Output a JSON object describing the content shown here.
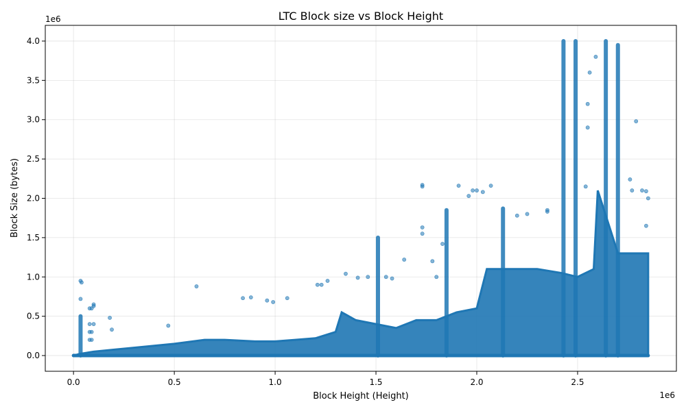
{
  "chart_data": {
    "type": "scatter",
    "title": "LTC Block size vs Block Height",
    "xlabel": "Block Height (Height)",
    "ylabel": "Block Size (bytes)",
    "x_offset_text": "1e6",
    "y_offset_text": "1e6",
    "xlim": [
      -0.14,
      2.99
    ],
    "ylim": [
      -0.2,
      4.2
    ],
    "x_units": "millions of blocks",
    "y_units": "millions of bytes",
    "grid": true,
    "x_ticks": [
      0.0,
      0.5,
      1.0,
      1.5,
      2.0,
      2.5
    ],
    "x_tick_labels": [
      "0.0",
      "0.5",
      "1.0",
      "1.5",
      "2.0",
      "2.5"
    ],
    "y_ticks": [
      0.0,
      0.5,
      1.0,
      1.5,
      2.0,
      2.5,
      3.0,
      3.5,
      4.0
    ],
    "y_tick_labels": [
      "0.0",
      "0.5",
      "1.0",
      "1.5",
      "2.0",
      "2.5",
      "3.0",
      "3.5",
      "4.0"
    ],
    "marker_color": "#1f77b4",
    "marker_alpha": 0.55,
    "density_envelope": {
      "x": [
        0.0,
        0.03,
        0.1,
        0.3,
        0.5,
        0.65,
        0.75,
        0.9,
        1.0,
        1.1,
        1.2,
        1.3,
        1.33,
        1.4,
        1.5,
        1.6,
        1.7,
        1.8,
        1.9,
        2.0,
        2.05,
        2.15,
        2.3,
        2.42,
        2.5,
        2.58,
        2.6,
        2.7,
        2.85
      ],
      "y": [
        0.0,
        0.02,
        0.05,
        0.1,
        0.15,
        0.2,
        0.2,
        0.18,
        0.18,
        0.2,
        0.22,
        0.3,
        0.55,
        0.45,
        0.4,
        0.35,
        0.45,
        0.45,
        0.55,
        0.6,
        1.1,
        1.1,
        1.1,
        1.05,
        1.0,
        1.1,
        2.1,
        1.3,
        1.3
      ]
    },
    "spikes": [
      {
        "x": 0.035,
        "y_max": 0.5
      },
      {
        "x": 1.51,
        "y_max": 1.5
      },
      {
        "x": 1.85,
        "y_max": 1.85
      },
      {
        "x": 2.13,
        "y_max": 1.87
      },
      {
        "x": 2.43,
        "y_max": 4.0
      },
      {
        "x": 2.49,
        "y_max": 4.0
      },
      {
        "x": 2.64,
        "y_max": 4.0
      },
      {
        "x": 2.7,
        "y_max": 3.95
      }
    ],
    "outliers": [
      {
        "x": 0.035,
        "y": 0.95
      },
      {
        "x": 0.04,
        "y": 0.93
      },
      {
        "x": 0.035,
        "y": 0.72
      },
      {
        "x": 0.1,
        "y": 0.65
      },
      {
        "x": 0.1,
        "y": 0.63
      },
      {
        "x": 0.08,
        "y": 0.6
      },
      {
        "x": 0.09,
        "y": 0.6
      },
      {
        "x": 0.08,
        "y": 0.4
      },
      {
        "x": 0.1,
        "y": 0.4
      },
      {
        "x": 0.08,
        "y": 0.3
      },
      {
        "x": 0.09,
        "y": 0.3
      },
      {
        "x": 0.08,
        "y": 0.2
      },
      {
        "x": 0.09,
        "y": 0.2
      },
      {
        "x": 0.18,
        "y": 0.48
      },
      {
        "x": 0.19,
        "y": 0.33
      },
      {
        "x": 0.47,
        "y": 0.38
      },
      {
        "x": 0.61,
        "y": 0.88
      },
      {
        "x": 0.84,
        "y": 0.73
      },
      {
        "x": 0.88,
        "y": 0.74
      },
      {
        "x": 0.96,
        "y": 0.7
      },
      {
        "x": 0.99,
        "y": 0.68
      },
      {
        "x": 1.06,
        "y": 0.73
      },
      {
        "x": 1.21,
        "y": 0.9
      },
      {
        "x": 1.23,
        "y": 0.9
      },
      {
        "x": 1.26,
        "y": 0.95
      },
      {
        "x": 1.35,
        "y": 1.04
      },
      {
        "x": 1.41,
        "y": 0.99
      },
      {
        "x": 1.46,
        "y": 1.0
      },
      {
        "x": 1.55,
        "y": 1.0
      },
      {
        "x": 1.58,
        "y": 0.98
      },
      {
        "x": 1.64,
        "y": 1.22
      },
      {
        "x": 1.73,
        "y": 2.17
      },
      {
        "x": 1.73,
        "y": 2.15
      },
      {
        "x": 1.73,
        "y": 1.63
      },
      {
        "x": 1.73,
        "y": 1.55
      },
      {
        "x": 1.78,
        "y": 1.2
      },
      {
        "x": 1.8,
        "y": 1.0
      },
      {
        "x": 1.83,
        "y": 1.42
      },
      {
        "x": 1.91,
        "y": 2.16
      },
      {
        "x": 1.96,
        "y": 2.03
      },
      {
        "x": 1.98,
        "y": 2.1
      },
      {
        "x": 2.0,
        "y": 2.1
      },
      {
        "x": 2.03,
        "y": 2.08
      },
      {
        "x": 2.07,
        "y": 2.16
      },
      {
        "x": 2.2,
        "y": 1.78
      },
      {
        "x": 2.25,
        "y": 1.8
      },
      {
        "x": 2.35,
        "y": 1.85
      },
      {
        "x": 2.35,
        "y": 1.83
      },
      {
        "x": 2.54,
        "y": 2.15
      },
      {
        "x": 2.55,
        "y": 2.9
      },
      {
        "x": 2.56,
        "y": 3.6
      },
      {
        "x": 2.55,
        "y": 3.2
      },
      {
        "x": 2.59,
        "y": 3.8
      },
      {
        "x": 2.76,
        "y": 2.24
      },
      {
        "x": 2.77,
        "y": 2.1
      },
      {
        "x": 2.79,
        "y": 2.98
      },
      {
        "x": 2.82,
        "y": 2.1
      },
      {
        "x": 2.84,
        "y": 2.09
      },
      {
        "x": 2.85,
        "y": 2.0
      },
      {
        "x": 2.84,
        "y": 1.65
      }
    ]
  }
}
